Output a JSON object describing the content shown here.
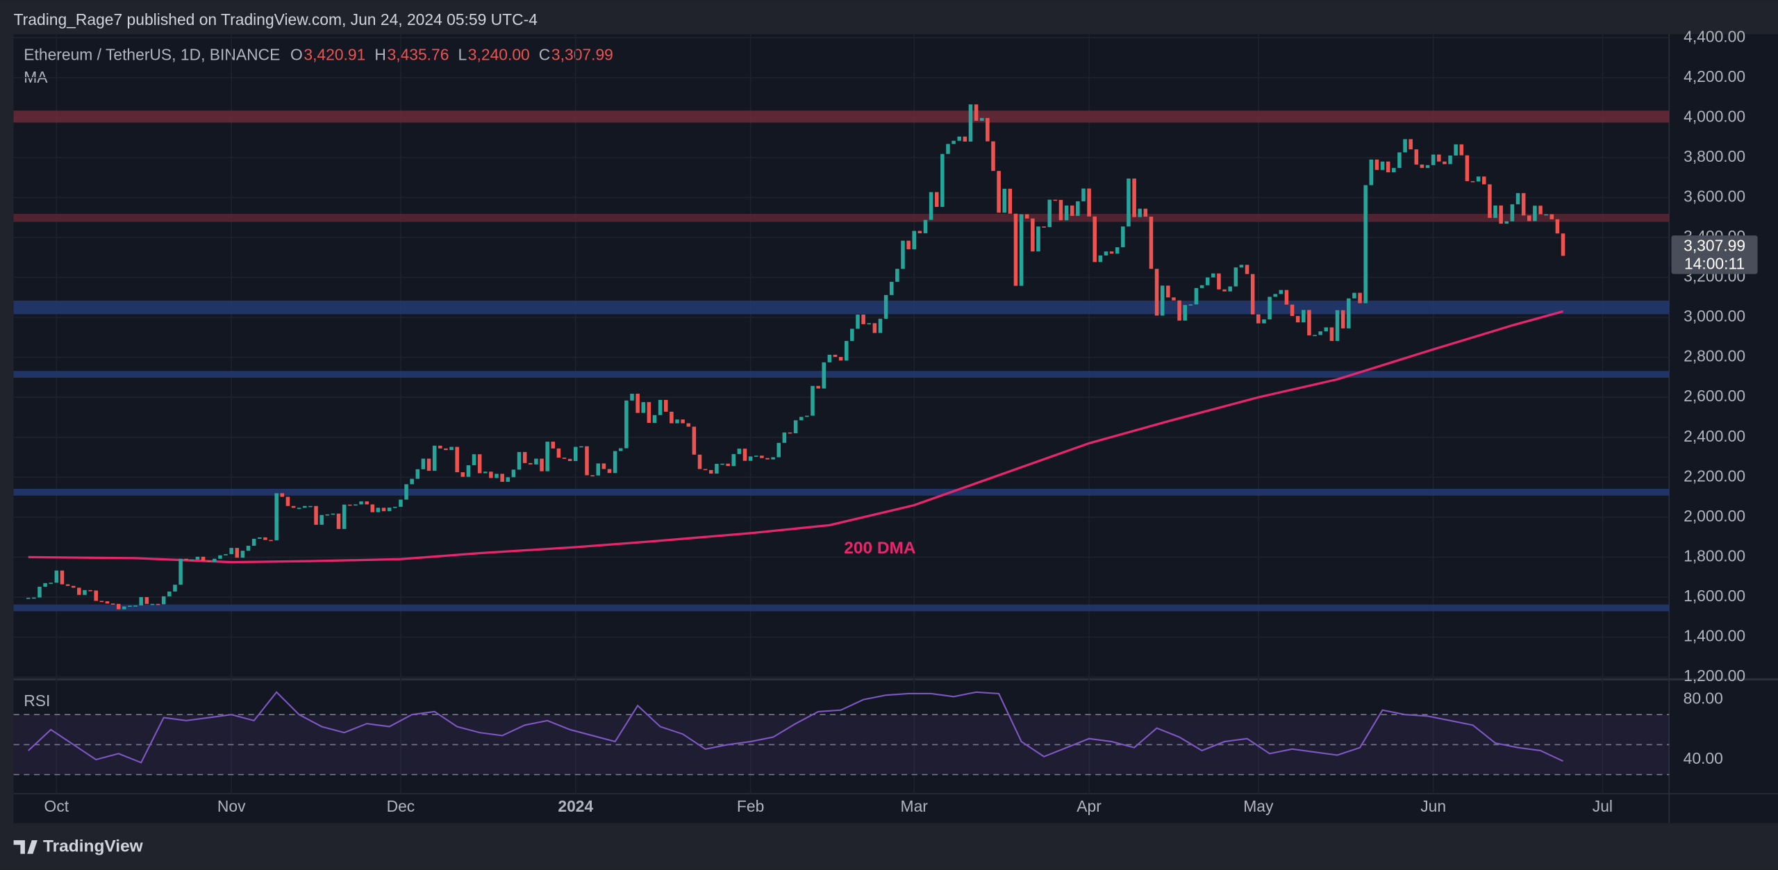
{
  "header": {
    "publisher": "Trading_Rage7 published on TradingView.com, Jun 24, 2024 05:59 UTC-4"
  },
  "chart_data": [
    {
      "type": "candlestick",
      "title": "Ethereum / TetherUS, 1D, BINANCE",
      "ohlc_legend": [
        {
          "key": "O",
          "text": "3,420.91"
        },
        {
          "key": "H",
          "text": "3,435.76"
        },
        {
          "key": "L",
          "text": "3,240.00"
        },
        {
          "key": "C",
          "text": "3,307.99"
        }
      ],
      "indicator_label": "MA",
      "close": [
        1594,
        1598,
        1652,
        1670,
        1672,
        1733,
        1664,
        1656,
        1647,
        1611,
        1635,
        1633,
        1581,
        1579,
        1568,
        1566,
        1539,
        1553,
        1557,
        1558,
        1600,
        1566,
        1566,
        1564,
        1604,
        1628,
        1662,
        1792,
        1785,
        1788,
        1802,
        1782,
        1777,
        1792,
        1809,
        1815,
        1846,
        1797,
        1832,
        1857,
        1892,
        1899,
        1886,
        1884,
        2120,
        2102,
        2056,
        2047,
        2047,
        2056,
        2056,
        1962,
        2011,
        2014,
        2018,
        1941,
        2063,
        2062,
        2064,
        2079,
        2064,
        2025,
        2047,
        2030,
        2048,
        2052,
        2088,
        2165,
        2192,
        2240,
        2293,
        2232,
        2358,
        2344,
        2336,
        2352,
        2225,
        2202,
        2260,
        2315,
        2220,
        2228,
        2196,
        2217,
        2177,
        2200,
        2238,
        2326,
        2271,
        2264,
        2293,
        2230,
        2378,
        2344,
        2298,
        2292,
        2281,
        2352,
        2355,
        2210,
        2209,
        2269,
        2241,
        2221,
        2331,
        2345,
        2584,
        2618,
        2522,
        2576,
        2472,
        2511,
        2587,
        2528,
        2470,
        2489,
        2470,
        2453,
        2313,
        2241,
        2236,
        2218,
        2267,
        2268,
        2256,
        2316,
        2343,
        2282,
        2304,
        2308,
        2296,
        2289,
        2300,
        2372,
        2424,
        2420,
        2485,
        2502,
        2508,
        2657,
        2644,
        2775,
        2813,
        2802,
        2784,
        2882,
        2943,
        3014,
        2966,
        2971,
        2922,
        2993,
        3112,
        3178,
        3243,
        3384,
        3341,
        3433,
        3421,
        3488,
        3627,
        3553,
        3818,
        3868,
        3884,
        3905,
        3880,
        4066,
        3984,
        3998,
        3881,
        3733,
        3524,
        3644,
        3519,
        3158,
        3516,
        3495,
        3330,
        3455,
        3452,
        3589,
        3588,
        3486,
        3560,
        3508,
        3581,
        3645,
        3505,
        3277,
        3310,
        3330,
        3319,
        3351,
        3455,
        3695,
        3502,
        3544,
        3504,
        3243,
        3009,
        3159,
        3100,
        3085,
        2984,
        3062,
        3065,
        3147,
        3161,
        3200,
        3220,
        3140,
        3130,
        3155,
        3250,
        3263,
        3217,
        3015,
        2970,
        2990,
        3103,
        3117,
        3137,
        3064,
        3007,
        2975,
        3037,
        2910,
        2912,
        2930,
        2950,
        2882,
        3036,
        2945,
        3095,
        3123,
        3071,
        3662,
        3790,
        3738,
        3780,
        3726,
        3748,
        3826,
        3892,
        3841,
        3765,
        3748,
        3762,
        3815,
        3780,
        3767,
        3810,
        3866,
        3811,
        3682,
        3680,
        3705,
        3666,
        3498,
        3560,
        3469,
        3481,
        3566,
        3622,
        3510,
        3482,
        3559,
        3516,
        3516,
        3491,
        3420,
        3308
      ],
      "color_up": "#26a69a",
      "color_down": "#ef5350",
      "xlim": [
        -2.6,
        290.8
      ],
      "xticks": [
        {
          "value": 5,
          "label": "Oct"
        },
        {
          "value": 36,
          "label": "Nov"
        },
        {
          "value": 66,
          "label": "Dec"
        },
        {
          "value": 97,
          "label": "2024"
        },
        {
          "value": 128,
          "label": "Feb"
        },
        {
          "value": 157,
          "label": "Mar"
        },
        {
          "value": 188,
          "label": "Apr"
        },
        {
          "value": 218,
          "label": "May"
        },
        {
          "value": 249,
          "label": "Jun"
        },
        {
          "value": 279,
          "label": "Jul"
        }
      ],
      "ylim": [
        1200,
        4417
      ],
      "yticks": [
        {
          "value": 1200,
          "label": "1,200.00"
        },
        {
          "value": 1400,
          "label": "1,400.00"
        },
        {
          "value": 1600,
          "label": "1,600.00"
        },
        {
          "value": 1800,
          "label": "1,800.00"
        },
        {
          "value": 2000,
          "label": "2,000.00"
        },
        {
          "value": 2200,
          "label": "2,200.00"
        },
        {
          "value": 2400,
          "label": "2,400.00"
        },
        {
          "value": 2600,
          "label": "2,600.00"
        },
        {
          "value": 2800,
          "label": "2,800.00"
        },
        {
          "value": 3000,
          "label": "3,000.00"
        },
        {
          "value": 3200,
          "label": "3,200.00"
        },
        {
          "value": 3400,
          "label": "3,400.00"
        },
        {
          "value": 3600,
          "label": "3,600.00"
        },
        {
          "value": 3800,
          "label": "3,800.00"
        },
        {
          "value": 4000,
          "label": "4,000.00"
        },
        {
          "value": 4200,
          "label": "4,200.00"
        },
        {
          "value": 4400,
          "label": "4,400.00"
        }
      ],
      "grid": true,
      "zones": [
        {
          "low": 3975,
          "high": 4035,
          "color": "#6b2a38"
        },
        {
          "low": 3478,
          "high": 3518,
          "color": "#5a2733"
        },
        {
          "low": 3016,
          "high": 3084,
          "color": "#233a72"
        },
        {
          "low": 2698,
          "high": 2732,
          "color": "#233a72"
        },
        {
          "low": 2108,
          "high": 2142,
          "color": "#233a72"
        },
        {
          "low": 1529,
          "high": 1563,
          "color": "#233a72"
        }
      ],
      "ma": {
        "name": "200 DMA",
        "color": "#e8266e",
        "x": [
          0,
          19,
          36,
          50,
          66,
          80,
          97,
          111,
          128,
          142,
          157,
          171,
          188,
          202,
          218,
          232,
          249,
          263,
          272
        ],
        "values": [
          1800,
          1795,
          1775,
          1780,
          1790,
          1820,
          1850,
          1880,
          1920,
          1960,
          2060,
          2200,
          2370,
          2480,
          2600,
          2690,
          2840,
          2960,
          3030
        ]
      },
      "last_price_label": "3,307.99",
      "countdown": "14:00:11"
    },
    {
      "type": "line",
      "title": "RSI",
      "color": "#7e57c2",
      "x": [
        0,
        4,
        8,
        12,
        16,
        20,
        24,
        28,
        32,
        36,
        40,
        44,
        48,
        52,
        56,
        60,
        64,
        68,
        72,
        76,
        80,
        84,
        88,
        92,
        96,
        100,
        104,
        108,
        112,
        116,
        120,
        124,
        128,
        132,
        136,
        140,
        144,
        148,
        152,
        156,
        160,
        164,
        168,
        172,
        176,
        180,
        184,
        188,
        192,
        196,
        200,
        204,
        208,
        212,
        216,
        220,
        224,
        228,
        232,
        236,
        240,
        244,
        248,
        252,
        256,
        260,
        264,
        268,
        272
      ],
      "values": [
        46,
        60,
        50,
        40,
        44,
        38,
        68,
        66,
        68,
        70,
        66,
        85,
        70,
        62,
        58,
        64,
        62,
        70,
        72,
        62,
        58,
        56,
        63,
        66,
        60,
        56,
        52,
        76,
        62,
        57,
        47,
        50,
        52,
        55,
        64,
        72,
        73,
        80,
        83,
        84,
        84,
        82,
        85,
        84,
        52,
        42,
        48,
        54,
        52,
        48,
        61,
        55,
        46,
        52,
        54,
        44,
        47,
        45,
        43,
        48,
        73,
        70,
        69,
        66,
        63,
        51,
        48,
        46,
        39
      ],
      "ylim": [
        17.2,
        92.8
      ],
      "yticks": [
        {
          "value": 80,
          "label": "80.00"
        },
        {
          "value": 40,
          "label": "40.00"
        }
      ],
      "levels": [
        30,
        50,
        70
      ]
    }
  ],
  "footer": {
    "brand": "TradingView"
  }
}
